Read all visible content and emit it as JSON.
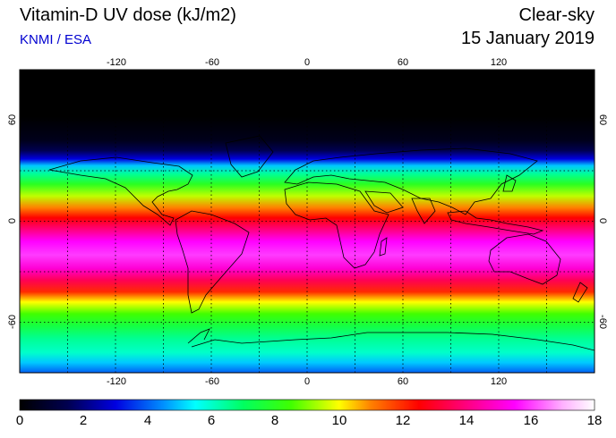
{
  "header": {
    "title": "Vitamin-D UV dose (kJ/m2)",
    "source": "KNMI / ESA",
    "mode": "Clear-sky",
    "date": "15 January 2019"
  },
  "map": {
    "lon_ticks": [
      "-120",
      "-60",
      "0",
      "60",
      "120"
    ],
    "lat_ticks_left": [
      "60",
      "0",
      "-60"
    ],
    "lat_ticks_right": [
      "60",
      "0",
      "-60"
    ],
    "lon_range": [
      -180,
      180
    ],
    "lat_range": [
      -90,
      90
    ]
  },
  "colorbar": {
    "min": 0,
    "max": 18,
    "labels": [
      "0",
      "2",
      "4",
      "6",
      "8",
      "10",
      "12",
      "14",
      "16",
      "18"
    ],
    "stops": [
      {
        "v": 0,
        "c": "#000000"
      },
      {
        "v": 1.5,
        "c": "#000050"
      },
      {
        "v": 3,
        "c": "#0000e0"
      },
      {
        "v": 4.5,
        "c": "#0090ff"
      },
      {
        "v": 5.5,
        "c": "#00ffff"
      },
      {
        "v": 7,
        "c": "#00ff60"
      },
      {
        "v": 8.5,
        "c": "#40ff00"
      },
      {
        "v": 10,
        "c": "#ffff00"
      },
      {
        "v": 11,
        "c": "#ff8000"
      },
      {
        "v": 12.5,
        "c": "#ff0000"
      },
      {
        "v": 14,
        "c": "#ff0080"
      },
      {
        "v": 15.5,
        "c": "#ff00ff"
      },
      {
        "v": 17,
        "c": "#ffb0ff"
      },
      {
        "v": 18,
        "c": "#ffffff"
      }
    ]
  },
  "dose_profile": [
    {
      "lat": 90,
      "v": 0
    },
    {
      "lat": 62,
      "v": 0
    },
    {
      "lat": 48,
      "v": 0.5
    },
    {
      "lat": 42,
      "v": 1.5
    },
    {
      "lat": 37,
      "v": 3
    },
    {
      "lat": 33,
      "v": 5
    },
    {
      "lat": 28,
      "v": 6.5
    },
    {
      "lat": 22,
      "v": 8
    },
    {
      "lat": 15,
      "v": 9.5
    },
    {
      "lat": 8,
      "v": 11
    },
    {
      "lat": 2,
      "v": 12.5
    },
    {
      "lat": -5,
      "v": 14
    },
    {
      "lat": -12,
      "v": 15.5
    },
    {
      "lat": -20,
      "v": 16
    },
    {
      "lat": -28,
      "v": 15
    },
    {
      "lat": -35,
      "v": 13.5
    },
    {
      "lat": -42,
      "v": 12
    },
    {
      "lat": -48,
      "v": 10
    },
    {
      "lat": -55,
      "v": 8.5
    },
    {
      "lat": -62,
      "v": 7.5
    },
    {
      "lat": -70,
      "v": 6.5
    },
    {
      "lat": -78,
      "v": 6
    },
    {
      "lat": -84,
      "v": 5
    },
    {
      "lat": -90,
      "v": 4
    }
  ]
}
